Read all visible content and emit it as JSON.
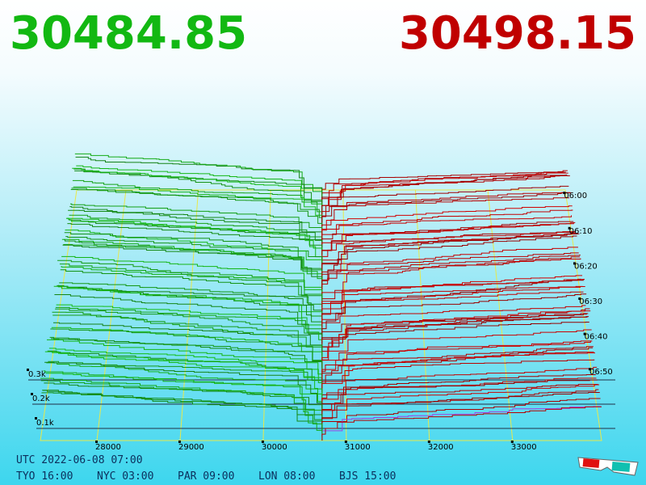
{
  "prices": {
    "bid": "30484.85",
    "ask": "30498.15"
  },
  "price_axis": [
    "28000",
    "29000",
    "30000",
    "31000",
    "32000",
    "33000"
  ],
  "size_axis": [
    "0.3k",
    "0.2k",
    "0.1k"
  ],
  "time_axis": [
    "06:00",
    "06:10",
    "06:20",
    "06:30",
    "06:40",
    "06:50"
  ],
  "footer": {
    "utc": "UTC 2022-06-08 07:00",
    "zones": [
      "TYO 16:00",
      "NYC 03:00",
      "PAR 09:00",
      "LON 08:00",
      "BJS 15:00"
    ]
  }
}
